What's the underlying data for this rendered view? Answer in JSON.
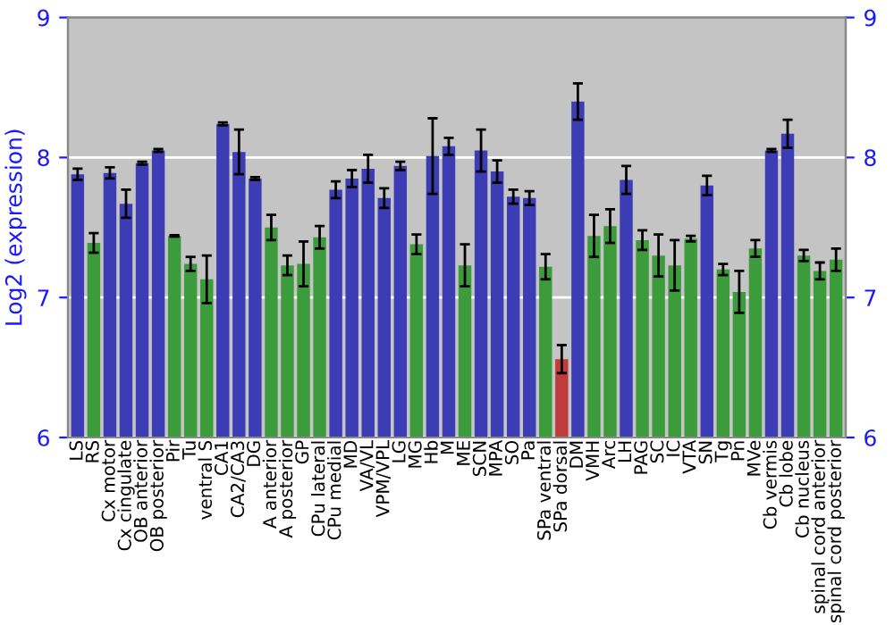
{
  "chart_data": {
    "type": "bar",
    "ylabel": "Log2 (expression)",
    "categories": [
      "LS",
      "RS",
      "Cx motor",
      "Cx cingulate",
      "OB anterior",
      "OB posterior",
      "Pir",
      "Tu",
      "ventral S",
      "CA1",
      "CA2/CA3",
      "DG",
      "A anterior",
      "A posterior",
      "GP",
      "CPu lateral",
      "CPu medial",
      "MD",
      "VA/VL",
      "VPM/VPL",
      "LG",
      "MG",
      "Hb",
      "M",
      "ME",
      "SCN",
      "MPA",
      "SO",
      "Pa",
      "SPa ventral",
      "SPa dorsal",
      "DM",
      "VMH",
      "Arc",
      "LH",
      "PAG",
      "SC",
      "IC",
      "VTA",
      "SN",
      "Tg",
      "Pn",
      "MVe",
      "Cb vermis",
      "Cb lobe",
      "Cb nucleus",
      "spinal cord anterior",
      "spinal cord posterior"
    ],
    "values": [
      7.88,
      7.39,
      7.89,
      7.67,
      7.96,
      8.05,
      7.44,
      7.24,
      7.13,
      8.24,
      8.04,
      7.85,
      7.5,
      7.23,
      7.24,
      7.43,
      7.77,
      7.85,
      7.92,
      7.71,
      7.94,
      7.38,
      8.01,
      8.08,
      7.23,
      8.05,
      7.9,
      7.72,
      7.71,
      7.22,
      6.56,
      8.4,
      7.44,
      7.51,
      7.84,
      7.41,
      7.3,
      7.23,
      7.42,
      7.8,
      7.2,
      7.04,
      7.35,
      8.05,
      8.17,
      7.3,
      7.19,
      7.27
    ],
    "errors": [
      0.04,
      0.07,
      0.04,
      0.1,
      0.01,
      0.01,
      0.005,
      0.05,
      0.17,
      0.01,
      0.16,
      0.01,
      0.09,
      0.07,
      0.16,
      0.08,
      0.06,
      0.06,
      0.1,
      0.07,
      0.03,
      0.07,
      0.27,
      0.06,
      0.15,
      0.15,
      0.08,
      0.05,
      0.05,
      0.09,
      0.1,
      0.13,
      0.15,
      0.12,
      0.1,
      0.07,
      0.15,
      0.18,
      0.02,
      0.07,
      0.04,
      0.15,
      0.06,
      0.01,
      0.1,
      0.04,
      0.06,
      0.08
    ],
    "colors": [
      "#3c3cb4",
      "#3c9c3c",
      "#3c3cb4",
      "#3c3cb4",
      "#3c3cb4",
      "#3c3cb4",
      "#3c9c3c",
      "#3c9c3c",
      "#3c9c3c",
      "#3c3cb4",
      "#3c3cb4",
      "#3c3cb4",
      "#3c9c3c",
      "#3c9c3c",
      "#3c9c3c",
      "#3c9c3c",
      "#3c3cb4",
      "#3c3cb4",
      "#3c3cb4",
      "#3c3cb4",
      "#3c3cb4",
      "#3c9c3c",
      "#3c3cb4",
      "#3c3cb4",
      "#3c9c3c",
      "#3c3cb4",
      "#3c3cb4",
      "#3c3cb4",
      "#3c3cb4",
      "#3c9c3c",
      "#c03c3c",
      "#3c3cb4",
      "#3c9c3c",
      "#3c9c3c",
      "#3c3cb4",
      "#3c9c3c",
      "#3c9c3c",
      "#3c9c3c",
      "#3c9c3c",
      "#3c3cb4",
      "#3c9c3c",
      "#3c9c3c",
      "#3c9c3c",
      "#3c3cb4",
      "#3c3cb4",
      "#3c9c3c",
      "#3c9c3c",
      "#3c9c3c"
    ],
    "ylim": [
      6,
      9
    ],
    "yticks": [
      6,
      7,
      8,
      9
    ],
    "y2lim": [
      6,
      9
    ],
    "y2ticks": [
      6,
      7,
      8,
      9
    ],
    "grid": "y"
  }
}
